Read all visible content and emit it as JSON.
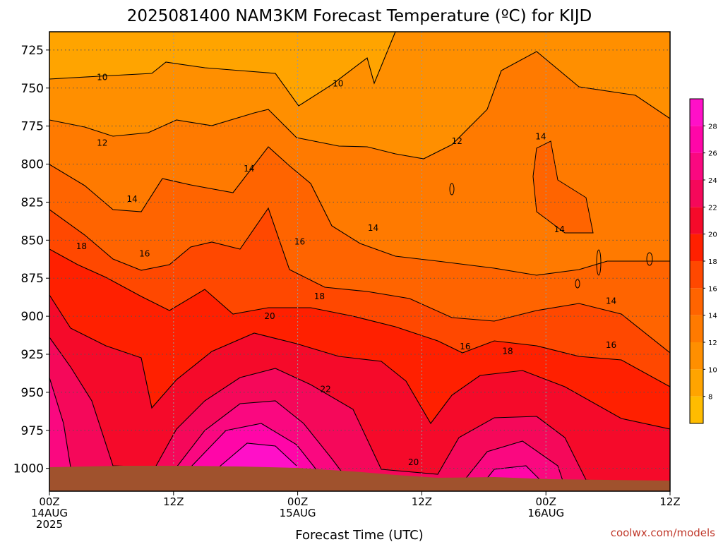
{
  "chart_data": {
    "type": "heatmap",
    "title": "2025081400 NAM3KM Forecast Temperature (ºC) for KIJD",
    "xlabel": "Forecast Time (UTC)",
    "ylabel": "",
    "y_axis": {
      "ticks": [
        "725",
        "750",
        "775",
        "800",
        "825",
        "850",
        "875",
        "900",
        "925",
        "950",
        "975",
        "1000"
      ],
      "range_hPa": [
        713,
        1015
      ],
      "inverted": true
    },
    "x_axis": {
      "ticks": [
        {
          "lines": [
            "00Z",
            "14AUG",
            "2025"
          ]
        },
        {
          "lines": [
            "12Z"
          ]
        },
        {
          "lines": [
            "00Z",
            "15AUG"
          ]
        },
        {
          "lines": [
            "12Z"
          ]
        },
        {
          "lines": [
            "00Z",
            "16AUG"
          ]
        },
        {
          "lines": [
            "12Z"
          ]
        }
      ],
      "range_hours": [
        0,
        60
      ],
      "grid": true
    },
    "colorbar": {
      "tick_labels": [
        "8",
        "10",
        "12",
        "14",
        "16",
        "18",
        "20",
        "22",
        "24",
        "26",
        "28"
      ],
      "range_C": [
        6,
        30
      ],
      "bins": [
        {
          "from": 6,
          "to": 8,
          "color": "#FFBC00"
        },
        {
          "from": 8,
          "to": 10,
          "color": "#FFA400"
        },
        {
          "from": 10,
          "to": 12,
          "color": "#FF8F00"
        },
        {
          "from": 12,
          "to": 14,
          "color": "#FF7A00"
        },
        {
          "from": 14,
          "to": 16,
          "color": "#FF6400"
        },
        {
          "from": 16,
          "to": 18,
          "color": "#FF4800"
        },
        {
          "from": 18,
          "to": 20,
          "color": "#FF2000"
        },
        {
          "from": 20,
          "to": 22,
          "color": "#F50A2A"
        },
        {
          "from": 22,
          "to": 24,
          "color": "#F5085A"
        },
        {
          "from": 24,
          "to": 26,
          "color": "#FA0880"
        },
        {
          "from": 26,
          "to": 28,
          "color": "#FF06A8"
        },
        {
          "from": 28,
          "to": 30,
          "color": "#FF10C8"
        }
      ]
    },
    "contour_labels": [
      {
        "text": "10",
        "x_hours": 5.1,
        "p_hPa": 743
      },
      {
        "text": "10",
        "x_hours": 27.9,
        "p_hPa": 747
      },
      {
        "text": "12",
        "x_hours": 5.1,
        "p_hPa": 786
      },
      {
        "text": "12",
        "x_hours": 39.4,
        "p_hPa": 785
      },
      {
        "text": "14",
        "x_hours": 47.5,
        "p_hPa": 782
      },
      {
        "text": "14",
        "x_hours": 19.3,
        "p_hPa": 803
      },
      {
        "text": "14",
        "x_hours": 8.0,
        "p_hPa": 823
      },
      {
        "text": "14",
        "x_hours": 31.3,
        "p_hPa": 842
      },
      {
        "text": "14",
        "x_hours": 49.3,
        "p_hPa": 843
      },
      {
        "text": "14",
        "x_hours": 54.3,
        "p_hPa": 890
      },
      {
        "text": "16",
        "x_hours": 24.2,
        "p_hPa": 851
      },
      {
        "text": "16",
        "x_hours": 9.2,
        "p_hPa": 859
      },
      {
        "text": "16",
        "x_hours": 40.2,
        "p_hPa": 920
      },
      {
        "text": "16",
        "x_hours": 54.3,
        "p_hPa": 919
      },
      {
        "text": "18",
        "x_hours": 3.1,
        "p_hPa": 854
      },
      {
        "text": "18",
        "x_hours": 26.1,
        "p_hPa": 887
      },
      {
        "text": "18",
        "x_hours": 44.3,
        "p_hPa": 923
      },
      {
        "text": "20",
        "x_hours": 21.3,
        "p_hPa": 900
      },
      {
        "text": "20",
        "x_hours": 35.2,
        "p_hPa": 996
      },
      {
        "text": "22",
        "x_hours": 26.7,
        "p_hPa": 948
      }
    ],
    "grid": true
  },
  "credit": "coolwx.com/models",
  "colors": {
    "ground": "#A0522D",
    "contour": "#000000",
    "grid": "#555555"
  }
}
